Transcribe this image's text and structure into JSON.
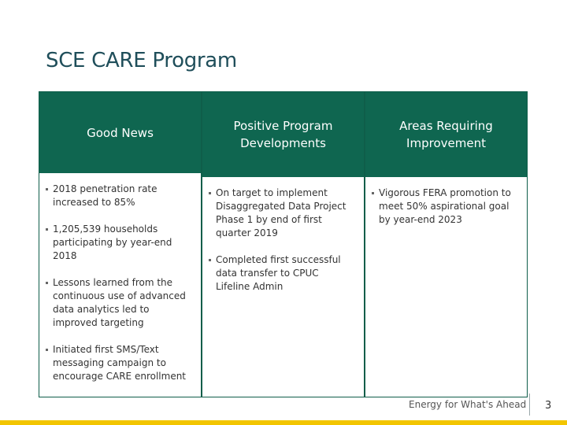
{
  "slide": {
    "title": "SCE CARE Program",
    "columns": [
      {
        "heading": "Good News",
        "items": [
          "2018 penetration rate increased to 85%",
          "1,205,539 households participating by year-end 2018",
          "Lessons learned from the continuous use of advanced data analytics led to improved targeting",
          "Initiated first SMS/Text messaging campaign to encourage CARE enrollment"
        ]
      },
      {
        "heading": "Positive Program Developments",
        "items": [
          "On target to implement Disaggregated Data Project Phase 1 by end of first quarter 2019",
          "Completed first successful data transfer to CPUC Lifeline Admin"
        ]
      },
      {
        "heading": "Areas Requiring Improvement",
        "items": [
          "Vigorous FERA promotion to meet 50% aspirational goal by year-end 2023"
        ]
      }
    ],
    "footer": {
      "tagline": "Energy for What's Ahead",
      "page_number": "3"
    }
  },
  "colors": {
    "header_green": "#0f6650",
    "accent_yellow": "#f2c500",
    "title_color": "#1f4e5a"
  }
}
